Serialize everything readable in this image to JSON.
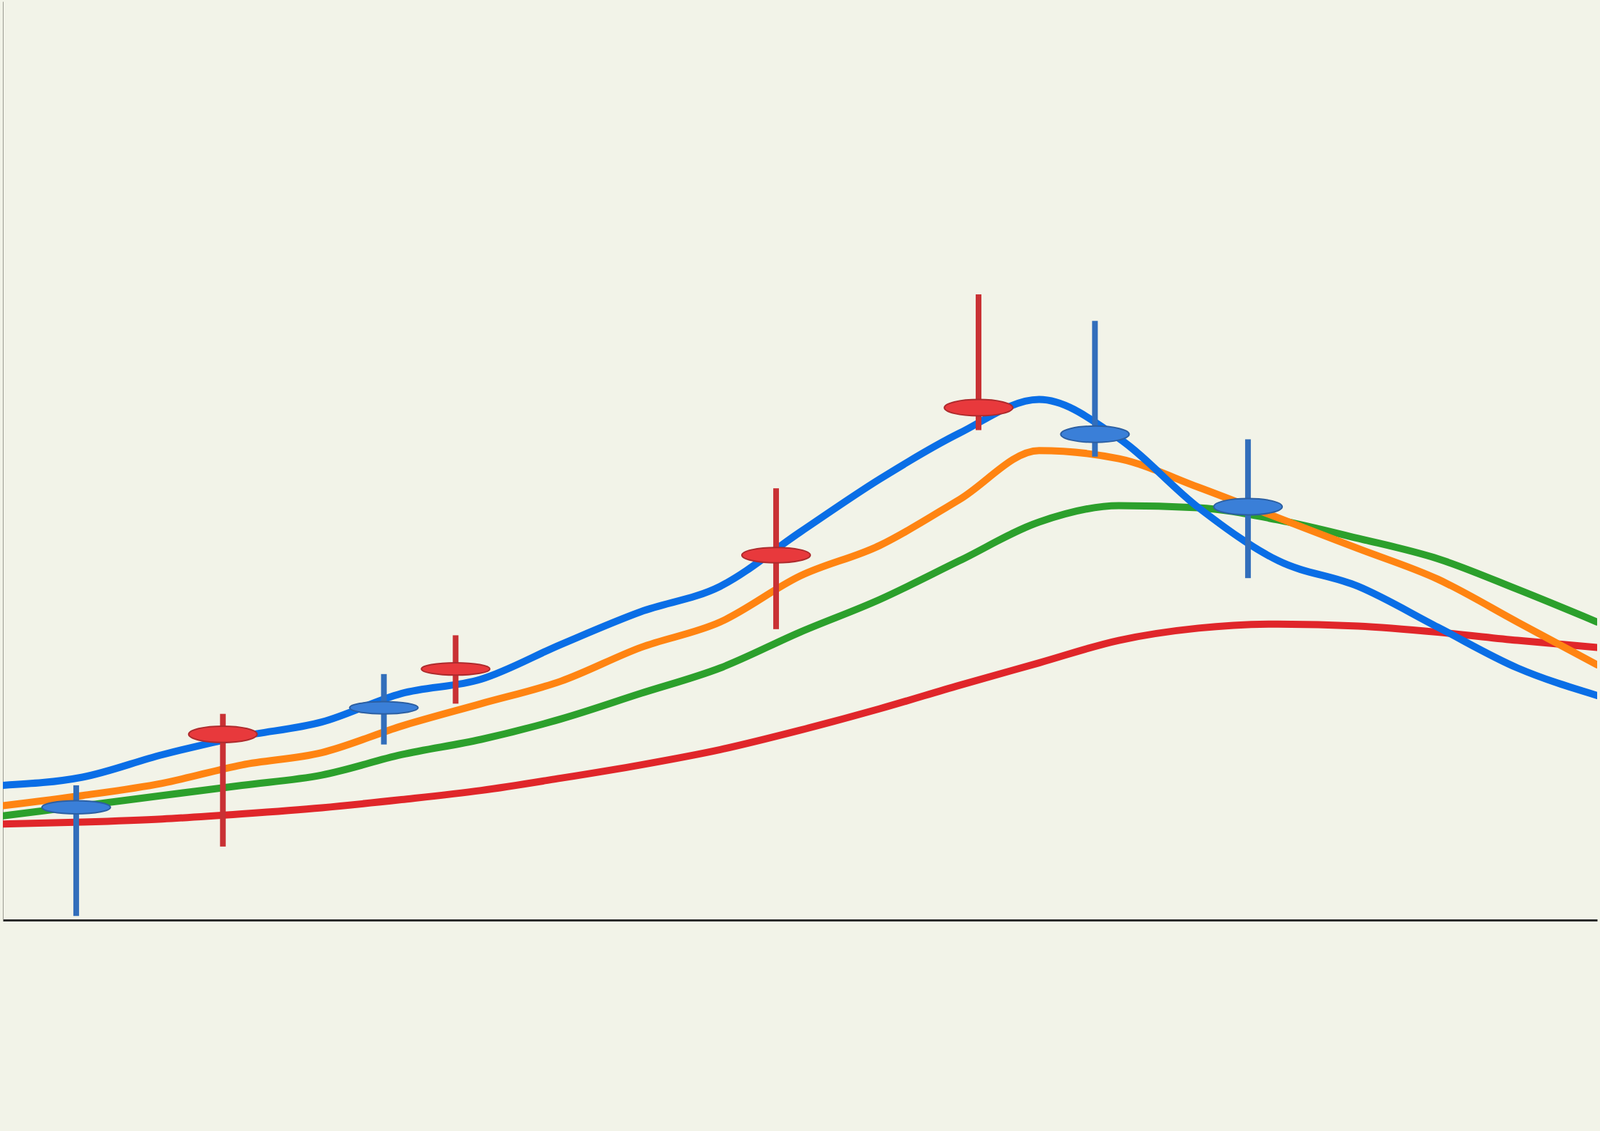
{
  "chart_data": {
    "type": "candlestick",
    "tick_labels": false,
    "xlim": [
      0,
      100
    ],
    "ylim": [
      0,
      90
    ],
    "x": [
      0,
      5,
      10,
      15,
      20,
      25,
      30,
      35,
      40,
      45,
      50,
      55,
      60,
      65,
      70,
      75,
      80,
      85,
      90,
      95,
      100
    ],
    "series": [
      {
        "type": "line",
        "color": "#0a6ee6",
        "values": [
          13.2,
          14.0,
          16.2,
          18.0,
          19.4,
          22.2,
          23.6,
          27.0,
          30.2,
          32.7,
          38.0,
          43.2,
          47.7,
          51.0,
          47.2,
          40.4,
          35.2,
          32.7,
          28.7,
          24.7,
          22.0
        ]
      },
      {
        "type": "line",
        "color": "#ff8412",
        "values": [
          11.2,
          12.2,
          13.4,
          15.2,
          16.4,
          19.0,
          21.2,
          23.4,
          26.7,
          29.2,
          33.7,
          36.7,
          41.2,
          46.0,
          45.2,
          42.4,
          39.4,
          36.4,
          33.4,
          29.2,
          25.0
        ]
      },
      {
        "type": "line",
        "color": "#2ca02c",
        "values": [
          10.2,
          11.2,
          12.2,
          13.2,
          14.2,
          16.2,
          17.7,
          19.7,
          22.2,
          24.7,
          28.2,
          31.4,
          35.2,
          39.0,
          40.6,
          40.4,
          39.2,
          37.4,
          35.4,
          32.4,
          29.2
        ]
      },
      {
        "type": "line",
        "color": "#e0262a",
        "values": [
          9.4,
          9.6,
          9.9,
          10.4,
          11.0,
          11.8,
          12.7,
          13.9,
          15.2,
          16.7,
          18.6,
          20.7,
          23.0,
          25.2,
          27.4,
          28.6,
          29.0,
          28.8,
          28.2,
          27.4,
          26.7
        ]
      }
    ],
    "candles": {
      "x": [
        4.6,
        13.8,
        23.9,
        28.4,
        48.5,
        61.2,
        68.5,
        78.1
      ],
      "open": [
        11.7,
        19.0,
        21.4,
        25.2,
        36.5,
        51.0,
        48.4,
        41.3
      ],
      "high": [
        13.2,
        20.2,
        24.1,
        27.9,
        42.3,
        61.3,
        58.7,
        47.1
      ],
      "low": [
        0.4,
        7.2,
        17.2,
        21.2,
        28.5,
        48.0,
        45.4,
        33.5
      ],
      "close": [
        10.4,
        17.4,
        20.2,
        24.0,
        35.0,
        49.4,
        46.8,
        39.7
      ],
      "colors": [
        "#3a7fd8",
        "#e8393c",
        "#3a7fd8",
        "#e8393c",
        "#e8393c",
        "#e8393c",
        "#3a7fd8",
        "#3a7fd8"
      ]
    }
  }
}
